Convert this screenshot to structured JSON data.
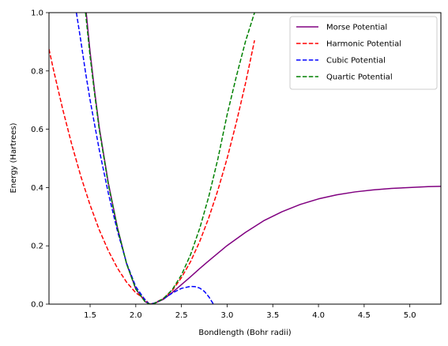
{
  "chart_data": {
    "type": "line",
    "title": "",
    "xlabel": "Bondlength (Bohr radii)",
    "ylabel": "Energy (Hartrees)",
    "xlim": [
      1.05,
      5.34
    ],
    "ylim": [
      0.0,
      1.0
    ],
    "xticks": [
      1.5,
      2.0,
      2.5,
      3.0,
      3.5,
      4.0,
      4.5,
      5.0
    ],
    "xtick_labels": [
      "1.5",
      "2.0",
      "2.5",
      "3.0",
      "3.5",
      "4.0",
      "4.5",
      "5.0"
    ],
    "yticks": [
      0.0,
      0.2,
      0.4,
      0.6,
      0.8,
      1.0
    ],
    "ytick_labels": [
      "0.0",
      "0.2",
      "0.4",
      "0.6",
      "0.8",
      "1.0"
    ],
    "grid": false,
    "legend_position": "top-right",
    "series": [
      {
        "name": "Morse Potential",
        "color": "#800080",
        "linestyle": "solid",
        "x": [
          1.4,
          1.45,
          1.5,
          1.55,
          1.6,
          1.7,
          1.8,
          1.9,
          2.0,
          2.1,
          2.15,
          2.2,
          2.3,
          2.4,
          2.5,
          2.6,
          2.7,
          2.8,
          2.9,
          3.0,
          3.2,
          3.4,
          3.6,
          3.8,
          4.0,
          4.2,
          4.4,
          4.6,
          4.8,
          5.0,
          5.2,
          5.34
        ],
        "y": [
          1.21,
          1.025,
          0.865,
          0.73,
          0.607,
          0.415,
          0.262,
          0.138,
          0.052,
          0.009,
          0.0,
          0.002,
          0.016,
          0.04,
          0.067,
          0.094,
          0.122,
          0.149,
          0.175,
          0.201,
          0.246,
          0.286,
          0.317,
          0.342,
          0.361,
          0.375,
          0.385,
          0.392,
          0.397,
          0.4,
          0.403,
          0.404
        ]
      },
      {
        "name": "Harmonic Potential",
        "color": "#ff0000",
        "linestyle": "dashed",
        "x": [
          1.05,
          1.1,
          1.2,
          1.3,
          1.4,
          1.5,
          1.6,
          1.7,
          1.8,
          1.9,
          2.0,
          2.1,
          2.15,
          2.2,
          2.3,
          2.4,
          2.5,
          2.6,
          2.7,
          2.8,
          2.9,
          3.0,
          3.1,
          3.2,
          3.25,
          3.3
        ],
        "y": [
          0.875,
          0.803,
          0.669,
          0.547,
          0.437,
          0.34,
          0.255,
          0.183,
          0.123,
          0.075,
          0.039,
          0.017,
          0.0,
          0.003,
          0.019,
          0.047,
          0.091,
          0.146,
          0.215,
          0.297,
          0.392,
          0.5,
          0.622,
          0.756,
          0.83,
          0.905
        ]
      },
      {
        "name": "Cubic Potential",
        "color": "#0000ff",
        "linestyle": "dashed",
        "x": [
          1.35,
          1.4,
          1.45,
          1.5,
          1.6,
          1.7,
          1.8,
          1.9,
          2.0,
          2.1,
          2.15,
          2.2,
          2.3,
          2.4,
          2.5,
          2.6,
          2.65,
          2.7,
          2.75,
          2.8,
          2.85
        ],
        "y": [
          1.0,
          0.9,
          0.795,
          0.7,
          0.53,
          0.38,
          0.25,
          0.14,
          0.06,
          0.015,
          0.0,
          0.003,
          0.018,
          0.038,
          0.054,
          0.061,
          0.06,
          0.055,
          0.044,
          0.025,
          0.0
        ]
      },
      {
        "name": "Quartic Potential",
        "color": "#008000",
        "linestyle": "dashed",
        "x": [
          1.45,
          1.5,
          1.55,
          1.6,
          1.7,
          1.8,
          1.9,
          2.0,
          2.1,
          2.15,
          2.2,
          2.3,
          2.4,
          2.5,
          2.6,
          2.7,
          2.8,
          2.9,
          3.0,
          3.1,
          3.2,
          3.3
        ],
        "y": [
          1.0,
          0.85,
          0.72,
          0.6,
          0.41,
          0.26,
          0.138,
          0.052,
          0.009,
          0.0,
          0.002,
          0.018,
          0.05,
          0.1,
          0.17,
          0.26,
          0.37,
          0.5,
          0.65,
          0.78,
          0.9,
          1.0
        ]
      }
    ]
  }
}
